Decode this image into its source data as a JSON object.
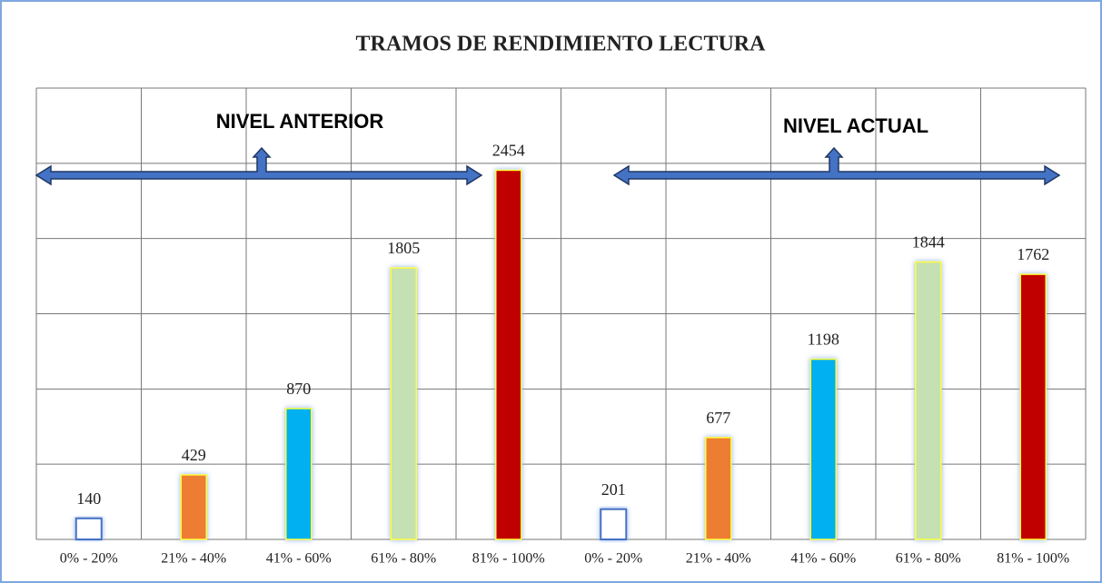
{
  "chart_data": {
    "type": "bar",
    "title": "TRAMOS DE RENDIMIENTO LECTURA",
    "categories": [
      "0% - 20%",
      "21% - 40%",
      "41% - 60%",
      "61% - 80%",
      "81% - 100%",
      "0% - 20%",
      "21% - 40%",
      "41% - 60%",
      "61% - 80%",
      "81% - 100%"
    ],
    "values": [
      140,
      429,
      870,
      1805,
      2454,
      201,
      677,
      1198,
      1844,
      1762
    ],
    "colors": [
      "#ffffff",
      "#ed7d31",
      "#00b0f0",
      "#c5e0b3",
      "#c00000",
      "#ffffff",
      "#ed7d31",
      "#00b0f0",
      "#c5e0b3",
      "#c00000"
    ],
    "ylim": [
      0,
      3000
    ],
    "yticks": [
      0,
      500,
      1000,
      1500,
      2000,
      2500,
      3000
    ],
    "grid": true,
    "annotations": [
      "NIVEL ANTERIOR",
      "NIVEL ACTUAL"
    ]
  }
}
